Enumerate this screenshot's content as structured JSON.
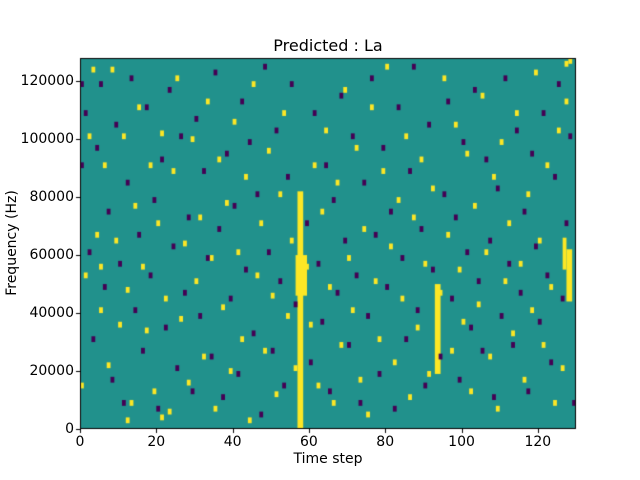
{
  "chart_data": {
    "type": "heatmap",
    "title": "Predicted : La",
    "xlabel": "Time step",
    "ylabel": "Frequency (Hz)",
    "x_range": [
      0,
      130
    ],
    "y_range": [
      0,
      128000
    ],
    "x_ticks": [
      0,
      20,
      40,
      60,
      80,
      100,
      120
    ],
    "y_ticks": [
      0,
      20000,
      40000,
      60000,
      80000,
      100000,
      120000
    ],
    "grid_shape": [
      128,
      130
    ],
    "grid": false,
    "legend": "none",
    "colors": {
      "background": "#21918c",
      "high": "#fde725",
      "low": "#440154",
      "axis": "#000000"
    },
    "yellow_bands": [
      {
        "t": 57,
        "f0": 0,
        "f1": 82,
        "w": 1.5
      },
      {
        "t": 56.5,
        "f0": 46,
        "f1": 60,
        "w": 3
      },
      {
        "t": 93,
        "f0": 19,
        "f1": 50,
        "w": 1.5
      },
      {
        "t": 127.5,
        "f0": 44,
        "f1": 62,
        "w": 1.5
      },
      {
        "t": 126.5,
        "f0": 55,
        "f1": 66,
        "w": 1
      }
    ],
    "yellow_cells": [
      [
        2,
        100
      ],
      [
        3,
        123
      ],
      [
        4,
        66
      ],
      [
        5,
        55
      ],
      [
        5,
        40
      ],
      [
        6,
        90
      ],
      [
        7,
        21
      ],
      [
        8,
        123
      ],
      [
        9,
        64
      ],
      [
        10,
        35
      ],
      [
        11,
        100
      ],
      [
        12,
        47
      ],
      [
        13,
        8
      ],
      [
        14,
        76
      ],
      [
        15,
        110
      ],
      [
        16,
        55
      ],
      [
        17,
        33
      ],
      [
        18,
        90
      ],
      [
        19,
        12
      ],
      [
        20,
        70
      ],
      [
        21,
        101
      ],
      [
        22,
        44
      ],
      [
        23,
        5
      ],
      [
        24,
        88
      ],
      [
        25,
        120
      ],
      [
        26,
        37
      ],
      [
        27,
        63
      ],
      [
        28,
        15
      ],
      [
        29,
        99
      ],
      [
        30,
        50
      ],
      [
        31,
        72
      ],
      [
        32,
        24
      ],
      [
        33,
        112
      ],
      [
        34,
        58
      ],
      [
        35,
        6
      ],
      [
        36,
        92
      ],
      [
        37,
        41
      ],
      [
        38,
        77
      ],
      [
        39,
        19
      ],
      [
        40,
        105
      ],
      [
        41,
        60
      ],
      [
        42,
        30
      ],
      [
        43,
        86
      ],
      [
        44,
        2
      ],
      [
        45,
        118
      ],
      [
        46,
        52
      ],
      [
        47,
        70
      ],
      [
        48,
        26
      ],
      [
        49,
        95
      ],
      [
        50,
        45
      ],
      [
        51,
        11
      ],
      [
        52,
        80
      ],
      [
        53,
        108
      ],
      [
        54,
        38
      ],
      [
        55,
        64
      ],
      [
        56,
        20
      ],
      [
        59,
        55
      ],
      [
        60,
        35
      ],
      [
        61,
        90
      ],
      [
        62,
        14
      ],
      [
        63,
        74
      ],
      [
        64,
        102
      ],
      [
        65,
        48
      ],
      [
        66,
        8
      ],
      [
        67,
        84
      ],
      [
        68,
        28
      ],
      [
        69,
        116
      ],
      [
        70,
        58
      ],
      [
        71,
        40
      ],
      [
        72,
        96
      ],
      [
        73,
        16
      ],
      [
        74,
        68
      ],
      [
        75,
        4
      ],
      [
        76,
        110
      ],
      [
        77,
        50
      ],
      [
        78,
        30
      ],
      [
        79,
        88
      ],
      [
        80,
        124
      ],
      [
        81,
        62
      ],
      [
        82,
        22
      ],
      [
        83,
        78
      ],
      [
        84,
        44
      ],
      [
        85,
        100
      ],
      [
        86,
        10
      ],
      [
        87,
        72
      ],
      [
        88,
        34
      ],
      [
        89,
        92
      ],
      [
        90,
        56
      ],
      [
        91,
        18
      ],
      [
        92,
        82
      ],
      [
        94,
        46
      ],
      [
        95,
        120
      ],
      [
        96,
        66
      ],
      [
        97,
        26
      ],
      [
        98,
        104
      ],
      [
        99,
        54
      ],
      [
        100,
        36
      ],
      [
        101,
        94
      ],
      [
        102,
        12
      ],
      [
        103,
        76
      ],
      [
        104,
        42
      ],
      [
        105,
        114
      ],
      [
        106,
        60
      ],
      [
        107,
        24
      ],
      [
        108,
        86
      ],
      [
        109,
        6
      ],
      [
        110,
        98
      ],
      [
        111,
        50
      ],
      [
        112,
        70
      ],
      [
        113,
        32
      ],
      [
        114,
        108
      ],
      [
        115,
        56
      ],
      [
        116,
        16
      ],
      [
        117,
        80
      ],
      [
        118,
        40
      ],
      [
        119,
        122
      ],
      [
        120,
        64
      ],
      [
        121,
        28
      ],
      [
        122,
        90
      ],
      [
        123,
        48
      ],
      [
        124,
        8
      ],
      [
        125,
        102
      ],
      [
        126,
        20
      ],
      [
        127,
        112
      ],
      [
        127,
        125
      ],
      [
        128,
        126
      ],
      [
        1,
        52
      ],
      [
        0,
        14
      ],
      [
        12,
        2
      ],
      [
        21,
        3
      ]
    ],
    "purple_cells": [
      [
        1,
        108
      ],
      [
        2,
        60
      ],
      [
        3,
        30
      ],
      [
        4,
        96
      ],
      [
        5,
        118
      ],
      [
        6,
        48
      ],
      [
        7,
        74
      ],
      [
        8,
        16
      ],
      [
        9,
        104
      ],
      [
        10,
        56
      ],
      [
        11,
        8
      ],
      [
        12,
        84
      ],
      [
        13,
        120
      ],
      [
        14,
        40
      ],
      [
        15,
        66
      ],
      [
        16,
        26
      ],
      [
        17,
        110
      ],
      [
        18,
        52
      ],
      [
        19,
        78
      ],
      [
        20,
        6
      ],
      [
        21,
        92
      ],
      [
        22,
        34
      ],
      [
        23,
        116
      ],
      [
        24,
        62
      ],
      [
        25,
        20
      ],
      [
        26,
        100
      ],
      [
        27,
        46
      ],
      [
        28,
        72
      ],
      [
        29,
        12
      ],
      [
        30,
        106
      ],
      [
        31,
        38
      ],
      [
        32,
        88
      ],
      [
        33,
        58
      ],
      [
        34,
        24
      ],
      [
        35,
        122
      ],
      [
        36,
        68
      ],
      [
        37,
        10
      ],
      [
        38,
        94
      ],
      [
        39,
        44
      ],
      [
        40,
        76
      ],
      [
        41,
        18
      ],
      [
        42,
        112
      ],
      [
        43,
        54
      ],
      [
        44,
        98
      ],
      [
        45,
        32
      ],
      [
        46,
        80
      ],
      [
        47,
        4
      ],
      [
        48,
        124
      ],
      [
        49,
        60
      ],
      [
        50,
        26
      ],
      [
        51,
        102
      ],
      [
        52,
        50
      ],
      [
        53,
        14
      ],
      [
        54,
        86
      ],
      [
        55,
        118
      ],
      [
        56,
        42
      ],
      [
        59,
        70
      ],
      [
        60,
        22
      ],
      [
        61,
        108
      ],
      [
        62,
        56
      ],
      [
        63,
        36
      ],
      [
        64,
        90
      ],
      [
        65,
        12
      ],
      [
        66,
        78
      ],
      [
        67,
        46
      ],
      [
        68,
        114
      ],
      [
        69,
        64
      ],
      [
        70,
        28
      ],
      [
        71,
        100
      ],
      [
        72,
        52
      ],
      [
        73,
        8
      ],
      [
        74,
        84
      ],
      [
        75,
        38
      ],
      [
        76,
        120
      ],
      [
        77,
        66
      ],
      [
        78,
        18
      ],
      [
        79,
        96
      ],
      [
        80,
        48
      ],
      [
        81,
        74
      ],
      [
        82,
        6
      ],
      [
        83,
        110
      ],
      [
        84,
        58
      ],
      [
        85,
        30
      ],
      [
        86,
        88
      ],
      [
        87,
        124
      ],
      [
        88,
        40
      ],
      [
        89,
        68
      ],
      [
        90,
        14
      ],
      [
        91,
        104
      ],
      [
        92,
        54
      ],
      [
        94,
        24
      ],
      [
        95,
        80
      ],
      [
        96,
        112
      ],
      [
        97,
        44
      ],
      [
        98,
        72
      ],
      [
        99,
        16
      ],
      [
        100,
        98
      ],
      [
        101,
        60
      ],
      [
        102,
        34
      ],
      [
        103,
        116
      ],
      [
        104,
        50
      ],
      [
        105,
        26
      ],
      [
        106,
        92
      ],
      [
        107,
        64
      ],
      [
        108,
        10
      ],
      [
        109,
        82
      ],
      [
        110,
        38
      ],
      [
        111,
        120
      ],
      [
        112,
        56
      ],
      [
        113,
        28
      ],
      [
        114,
        102
      ],
      [
        115,
        46
      ],
      [
        116,
        74
      ],
      [
        117,
        12
      ],
      [
        118,
        94
      ],
      [
        119,
        62
      ],
      [
        120,
        36
      ],
      [
        121,
        108
      ],
      [
        122,
        52
      ],
      [
        123,
        22
      ],
      [
        124,
        86
      ],
      [
        125,
        118
      ],
      [
        126,
        44
      ],
      [
        127,
        70
      ],
      [
        128,
        100
      ],
      [
        129,
        8
      ],
      [
        0,
        90
      ],
      [
        0,
        118
      ]
    ]
  }
}
